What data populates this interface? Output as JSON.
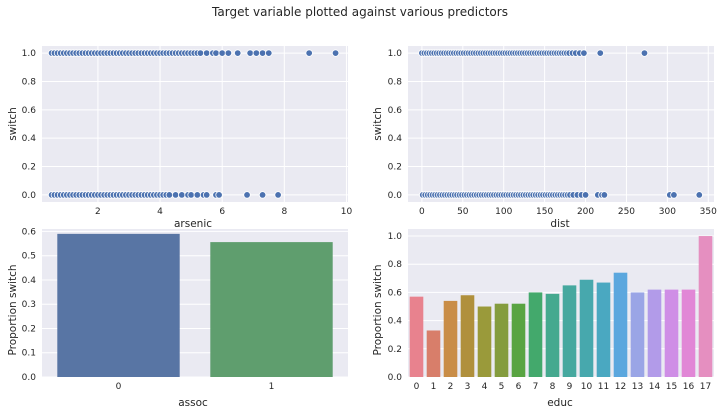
{
  "figure": {
    "title": "Target variable plotted against various predictors"
  },
  "colors": {
    "point": "#4c72b0",
    "educ": [
      "#e8828e",
      "#d87e6a",
      "#c98d47",
      "#b0903c",
      "#9a9a3a",
      "#849c3e",
      "#59a442",
      "#43a96c",
      "#45a98f",
      "#46a89f",
      "#47a8ad",
      "#4aa8c1",
      "#5ba7de",
      "#9aa5e6",
      "#b29be9",
      "#cf8ee6",
      "#e187d6",
      "#e58fc0"
    ],
    "assoc": [
      "#5875a4",
      "#5f9e6e"
    ]
  },
  "chart_data": [
    {
      "type": "scatter",
      "id": "arsenic",
      "title": "",
      "xlabel": "arsenic",
      "ylabel": "switch",
      "xlim": [
        0.2,
        10.05
      ],
      "ylim": [
        -0.05,
        1.05
      ],
      "xticks": [
        2,
        4,
        6,
        8,
        10
      ],
      "yticks": [
        0.0,
        0.2,
        0.4,
        0.6,
        0.8,
        1.0
      ],
      "series": [
        {
          "y": 1,
          "x": [
            0.51,
            0.6,
            0.7,
            0.8,
            0.9,
            1.0,
            1.1,
            1.2,
            1.3,
            1.4,
            1.5,
            1.6,
            1.7,
            1.8,
            1.9,
            2.0,
            2.1,
            2.2,
            2.3,
            2.4,
            2.5,
            2.6,
            2.7,
            2.8,
            2.9,
            3.0,
            3.1,
            3.2,
            3.3,
            3.4,
            3.5,
            3.6,
            3.7,
            3.8,
            3.9,
            4.0,
            4.1,
            4.2,
            4.3,
            4.4,
            4.5,
            4.6,
            4.7,
            4.8,
            4.9,
            5.0,
            5.1,
            5.2,
            5.3,
            5.5,
            5.7,
            5.8,
            6.0,
            6.2,
            6.5,
            6.9,
            7.1,
            7.3,
            7.5,
            8.8,
            9.65
          ]
        },
        {
          "y": 0,
          "x": [
            0.51,
            0.6,
            0.7,
            0.8,
            0.9,
            1.0,
            1.1,
            1.2,
            1.3,
            1.4,
            1.5,
            1.6,
            1.7,
            1.8,
            1.9,
            2.0,
            2.1,
            2.2,
            2.3,
            2.4,
            2.5,
            2.6,
            2.7,
            2.8,
            2.9,
            3.0,
            3.1,
            3.2,
            3.3,
            3.4,
            3.5,
            3.6,
            3.7,
            3.8,
            3.9,
            4.0,
            4.1,
            4.2,
            4.3,
            4.5,
            4.7,
            4.9,
            5.0,
            5.2,
            5.4,
            5.5,
            5.8,
            5.9,
            6.8,
            7.3,
            7.8
          ]
        }
      ]
    },
    {
      "type": "scatter",
      "id": "dist",
      "title": "",
      "xlabel": "dist",
      "ylabel": "switch",
      "xlim": [
        -17,
        357
      ],
      "ylim": [
        -0.05,
        1.05
      ],
      "xticks": [
        0,
        50,
        100,
        150,
        200,
        250,
        300,
        350
      ],
      "yticks": [
        0.0,
        0.2,
        0.4,
        0.6,
        0.8,
        1.0
      ],
      "series": [
        {
          "y": 1,
          "x": [
            0,
            3,
            6,
            9,
            12,
            15,
            18,
            21,
            24,
            27,
            30,
            33,
            36,
            39,
            42,
            45,
            48,
            51,
            54,
            57,
            60,
            63,
            66,
            69,
            72,
            75,
            78,
            81,
            84,
            87,
            90,
            93,
            96,
            99,
            102,
            105,
            108,
            111,
            114,
            117,
            120,
            123,
            126,
            129,
            132,
            135,
            138,
            141,
            144,
            147,
            150,
            153,
            156,
            159,
            162,
            165,
            168,
            171,
            174,
            177,
            180,
            184,
            188,
            193,
            198,
            218,
            272
          ]
        },
        {
          "y": 0,
          "x": [
            1,
            4,
            7,
            10,
            13,
            16,
            19,
            22,
            25,
            28,
            31,
            34,
            37,
            40,
            43,
            46,
            49,
            52,
            55,
            58,
            61,
            64,
            67,
            70,
            73,
            76,
            79,
            82,
            85,
            88,
            91,
            94,
            97,
            100,
            103,
            106,
            109,
            112,
            115,
            118,
            121,
            124,
            127,
            130,
            133,
            136,
            139,
            142,
            145,
            148,
            151,
            154,
            157,
            160,
            163,
            166,
            169,
            172,
            175,
            178,
            181,
            185,
            190,
            195,
            200,
            215,
            220,
            223,
            303,
            308,
            339
          ]
        }
      ]
    },
    {
      "type": "bar",
      "id": "assoc",
      "title": "",
      "xlabel": "assoc",
      "ylabel": "Proportion switch",
      "ylim": [
        0,
        0.61
      ],
      "yticks": [
        0.0,
        0.1,
        0.2,
        0.3,
        0.4,
        0.5,
        0.6
      ],
      "categories": [
        "0",
        "1"
      ],
      "values": [
        0.59,
        0.556
      ]
    },
    {
      "type": "bar",
      "id": "educ",
      "title": "",
      "xlabel": "educ",
      "ylabel": "Proportion switch",
      "ylim": [
        0,
        1.05
      ],
      "yticks": [
        0.0,
        0.2,
        0.4,
        0.6,
        0.8,
        1.0
      ],
      "categories": [
        "0",
        "1",
        "2",
        "3",
        "4",
        "5",
        "6",
        "7",
        "8",
        "9",
        "10",
        "11",
        "12",
        "13",
        "14",
        "15",
        "16",
        "17"
      ],
      "values": [
        0.57,
        0.33,
        0.54,
        0.58,
        0.5,
        0.52,
        0.52,
        0.6,
        0.59,
        0.65,
        0.69,
        0.67,
        0.74,
        0.6,
        0.62,
        0.62,
        0.62,
        1.0
      ]
    }
  ]
}
